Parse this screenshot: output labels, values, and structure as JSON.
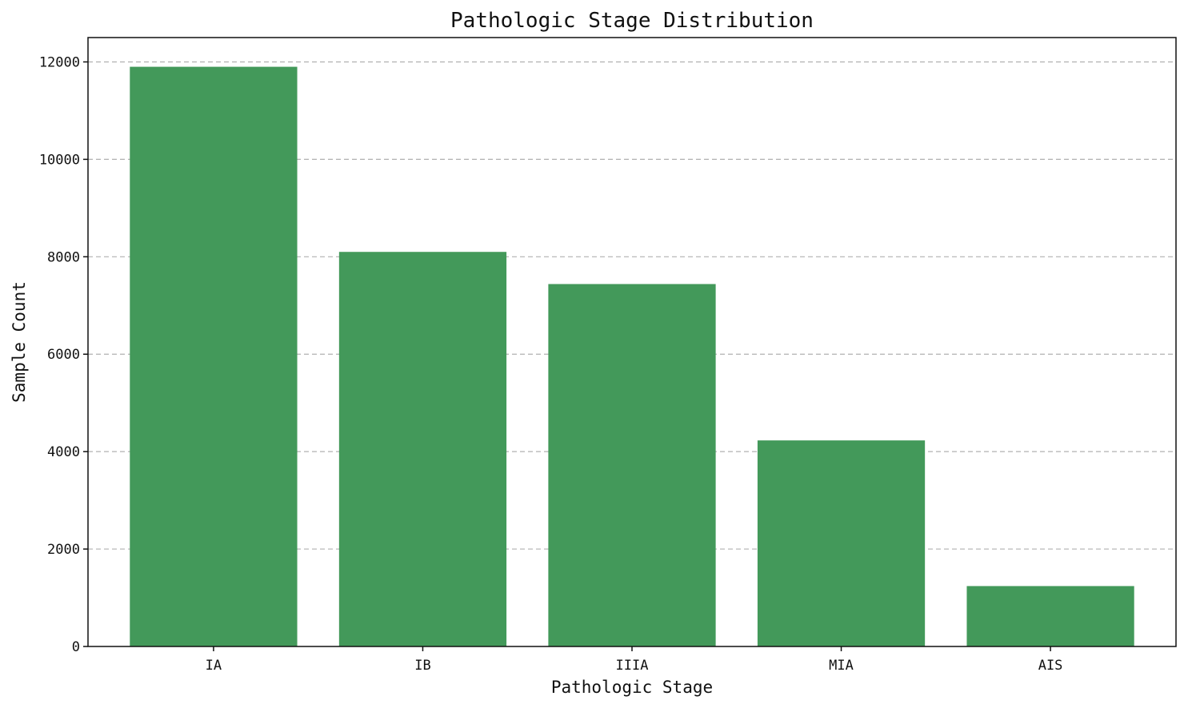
{
  "chart_data": {
    "type": "bar",
    "title": "Pathologic Stage Distribution",
    "xlabel": "Pathologic Stage",
    "ylabel": "Sample Count",
    "categories": [
      "IA",
      "IB",
      "IIIA",
      "MIA",
      "AIS"
    ],
    "values": [
      11900,
      8100,
      7440,
      4230,
      1240
    ],
    "ylim": [
      0,
      12500
    ],
    "yticks": [
      0,
      2000,
      4000,
      6000,
      8000,
      10000,
      12000
    ],
    "grid": "y-dashed",
    "bar_color": "#43995a"
  }
}
